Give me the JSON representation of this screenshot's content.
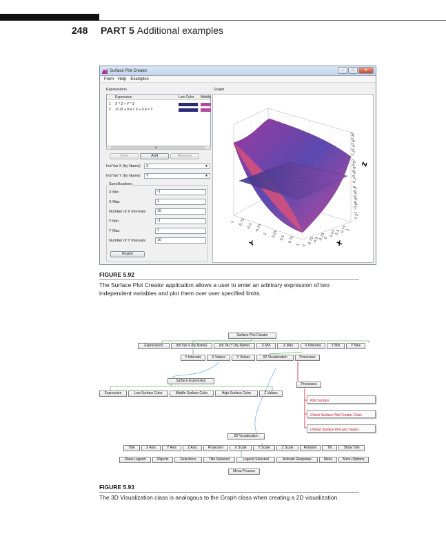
{
  "header": {
    "page_number": "248",
    "part_label": "PART 5",
    "part_title": "Additional examples"
  },
  "figure1": {
    "window_title": "Surface Plot Creator",
    "menu": [
      "Form",
      "Help",
      "Examples"
    ],
    "expressions_label": "Expressions",
    "graph_label": "Graph",
    "table_headers": [
      "Expression",
      "Low Color",
      "Middle"
    ],
    "rows": [
      {
        "num": "1",
        "expr": "X ^ 2 + Y ^ 2"
      },
      {
        "num": "2",
        "expr": "-0.13 + 0.4 × X + 0.6 × Y"
      }
    ],
    "scroll_text": "III",
    "buttons": {
      "view": "View",
      "add": "Add",
      "remove": "Remove",
      "replot": "Replot"
    },
    "ind_var_x_label": "Ind Var X (by Name)",
    "ind_var_x_value": "X",
    "ind_var_y_label": "Ind Var Y (by Name)",
    "ind_var_y_value": "Y",
    "specifications_label": "Specifications",
    "specs": [
      {
        "label": "X Min",
        "value": "-1"
      },
      {
        "label": "X Max",
        "value": "1"
      },
      {
        "label": "Number of X Intervals",
        "value": "10"
      },
      {
        "label": "Y Min",
        "value": "-1"
      },
      {
        "label": "Y Max",
        "value": "1"
      },
      {
        "label": "Number of Y Intervals",
        "value": "10"
      }
    ],
    "axis_letters": {
      "x": "X",
      "y": "Y",
      "z": "Z"
    },
    "axis_ticks": {
      "xy": [
        "-1",
        "-0.75",
        "-0.5",
        "-0.25",
        "0",
        "0.25",
        "0.5",
        "0.75",
        "1"
      ],
      "z": [
        "2",
        "1.8",
        "1.6",
        "1.4",
        "1.2",
        "1",
        "0.8",
        "0.6",
        "0.4",
        "0.2",
        "0",
        "-0.2",
        "-0.4",
        "-0.6",
        "-0.8",
        "-1",
        "-1.2"
      ]
    },
    "colors": {
      "low": "#2a2a7a",
      "middle": "#b04aa0"
    },
    "figure_label": "FIGURE 5.92",
    "caption": "The Surface Plot Creator application allows a user to enter an arbitrary expression of two independent variables and plot them over user specified limits."
  },
  "figure2": {
    "nodes": {
      "spc": "Surface Plot Creator",
      "expressions": "Expressions",
      "ind_x": "Ind Var X (by Name)",
      "ind_y": "Ind Var Y (by Name)",
      "xmin": "X Min",
      "xmax": "X Max",
      "xint": "X Intervals",
      "ymin": "Y Min",
      "ymax": "Y Max",
      "yint": "Y Intervals",
      "xvals": "X Values",
      "yvals": "Y Values",
      "vis3d": "3D Visualization",
      "processes": "Processes",
      "surf_expr": "Surface Expression",
      "processes2": "Processes",
      "expression": "Expression",
      "low_color": "Low Surface Color",
      "mid_color": "Middle Surface Color",
      "high_color": "High Surface Color",
      "zvals": "Z Values",
      "proc_plot": "Plot Surface",
      "proc_check": "Check Surface Plot Creator Class",
      "proc_unload": "Unload Surface Plot and Values",
      "vis3d_main": "3D Visualization",
      "title": "Title",
      "xaxis": "X Axis",
      "yaxis": "Y Axis",
      "zaxis": "Z Axis",
      "projection": "Projection",
      "xscale": "X Scale",
      "yscale": "Y Scale",
      "zscale": "Z Scale",
      "rotation": "Rotation",
      "tilt": "Tilt",
      "show_title": "Show Title",
      "show_legend": "Show Legend",
      "objects": "Objects",
      "selections": "Selections",
      "title_selected": "Title Selected",
      "legend_selected": "Legend Selected",
      "activate_response": "Activate Response",
      "menu": "Menu",
      "menu_options": "Menu Options",
      "menu_process": "Menu Process"
    },
    "figure_label": "FIGURE 5.93",
    "caption": "The 3D Visualization class is analogous to the Graph class when creating a 2D visualization."
  }
}
